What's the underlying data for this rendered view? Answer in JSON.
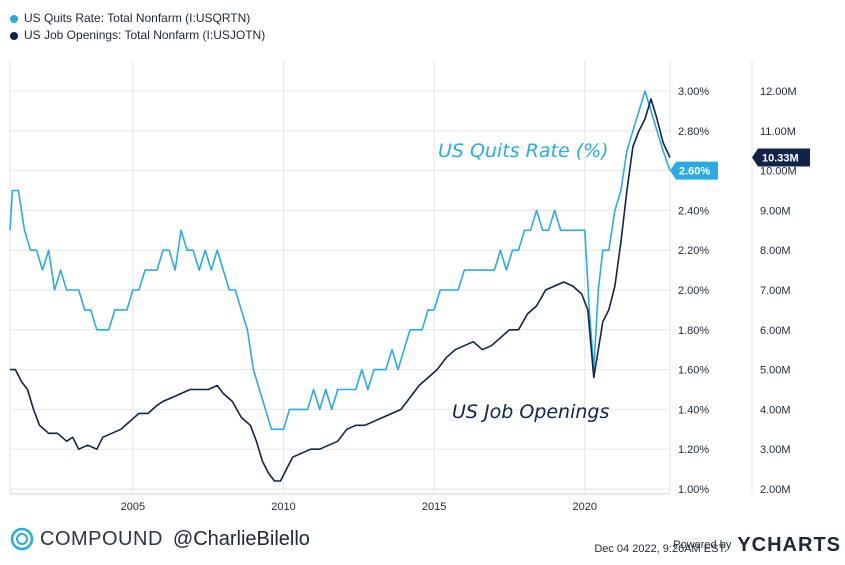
{
  "legend": {
    "quits_label": "US Quits Rate: Total Nonfarm (I:USQRTN)",
    "openings_label": "US Job Openings: Total Nonfarm (I:USJOTN)"
  },
  "annotations": {
    "quits": "US Quits Rate (%)",
    "openings": "US Job Openings"
  },
  "badges": {
    "quits_last": "2.60%",
    "openings_last": "10.33M"
  },
  "footer": {
    "brand": "COMPOUND",
    "handle": "@CharlieBilello",
    "timestamp": "Dec 04 2022, 9:26AM EST.",
    "powered_by": "Powered by",
    "ycharts": "YCHARTS"
  },
  "colors": {
    "quits": "#29abe2",
    "openings": "#0f2446",
    "grid": "#e6e6e6",
    "badge_quits_bg": "#29abe2",
    "badge_openings_bg": "#0f2446"
  },
  "chart_data": {
    "type": "line",
    "x_ticks": [
      "2005",
      "2010",
      "2015",
      "2020"
    ],
    "left_axis": {
      "ticks": [
        "1.00%",
        "1.20%",
        "1.40%",
        "1.60%",
        "1.80%",
        "2.00%",
        "2.20%",
        "2.40%",
        "2.60%",
        "2.80%",
        "3.00%"
      ],
      "range": [
        1.0,
        3.0
      ]
    },
    "right_axis": {
      "ticks": [
        "2.00M",
        "3.00M",
        "4.00M",
        "5.00M",
        "6.00M",
        "7.00M",
        "8.00M",
        "9.00M",
        "10.00M",
        "11.00M",
        "12.00M"
      ],
      "range": [
        2.0,
        12.0
      ]
    },
    "x_range": [
      2000.92,
      2022.83
    ],
    "series": [
      {
        "name": "US Quits Rate: Total Nonfarm (I:USQRTN)",
        "axis": "left",
        "points": [
          [
            2000.92,
            2.3
          ],
          [
            2001.0,
            2.5
          ],
          [
            2001.2,
            2.5
          ],
          [
            2001.4,
            2.3
          ],
          [
            2001.6,
            2.2
          ],
          [
            2001.8,
            2.2
          ],
          [
            2002.0,
            2.1
          ],
          [
            2002.2,
            2.2
          ],
          [
            2002.4,
            2.0
          ],
          [
            2002.6,
            2.1
          ],
          [
            2002.8,
            2.0
          ],
          [
            2003.0,
            2.0
          ],
          [
            2003.2,
            2.0
          ],
          [
            2003.4,
            1.9
          ],
          [
            2003.6,
            1.9
          ],
          [
            2003.8,
            1.8
          ],
          [
            2004.0,
            1.8
          ],
          [
            2004.2,
            1.8
          ],
          [
            2004.4,
            1.9
          ],
          [
            2004.6,
            1.9
          ],
          [
            2004.8,
            1.9
          ],
          [
            2005.0,
            2.0
          ],
          [
            2005.2,
            2.0
          ],
          [
            2005.4,
            2.1
          ],
          [
            2005.6,
            2.1
          ],
          [
            2005.8,
            2.1
          ],
          [
            2006.0,
            2.2
          ],
          [
            2006.2,
            2.2
          ],
          [
            2006.4,
            2.1
          ],
          [
            2006.6,
            2.3
          ],
          [
            2006.8,
            2.2
          ],
          [
            2007.0,
            2.2
          ],
          [
            2007.2,
            2.1
          ],
          [
            2007.4,
            2.2
          ],
          [
            2007.6,
            2.1
          ],
          [
            2007.8,
            2.2
          ],
          [
            2008.0,
            2.1
          ],
          [
            2008.2,
            2.0
          ],
          [
            2008.4,
            2.0
          ],
          [
            2008.6,
            1.9
          ],
          [
            2008.8,
            1.8
          ],
          [
            2009.0,
            1.6
          ],
          [
            2009.2,
            1.5
          ],
          [
            2009.4,
            1.4
          ],
          [
            2009.6,
            1.3
          ],
          [
            2009.8,
            1.3
          ],
          [
            2010.0,
            1.3
          ],
          [
            2010.2,
            1.4
          ],
          [
            2010.4,
            1.4
          ],
          [
            2010.6,
            1.4
          ],
          [
            2010.8,
            1.4
          ],
          [
            2011.0,
            1.5
          ],
          [
            2011.2,
            1.4
          ],
          [
            2011.4,
            1.5
          ],
          [
            2011.6,
            1.4
          ],
          [
            2011.8,
            1.5
          ],
          [
            2012.0,
            1.5
          ],
          [
            2012.2,
            1.5
          ],
          [
            2012.4,
            1.5
          ],
          [
            2012.6,
            1.6
          ],
          [
            2012.8,
            1.5
          ],
          [
            2013.0,
            1.6
          ],
          [
            2013.2,
            1.6
          ],
          [
            2013.4,
            1.6
          ],
          [
            2013.6,
            1.7
          ],
          [
            2013.8,
            1.6
          ],
          [
            2014.0,
            1.7
          ],
          [
            2014.2,
            1.8
          ],
          [
            2014.4,
            1.8
          ],
          [
            2014.6,
            1.8
          ],
          [
            2014.8,
            1.9
          ],
          [
            2015.0,
            1.9
          ],
          [
            2015.2,
            2.0
          ],
          [
            2015.4,
            2.0
          ],
          [
            2015.6,
            2.0
          ],
          [
            2015.8,
            2.0
          ],
          [
            2016.0,
            2.1
          ],
          [
            2016.2,
            2.1
          ],
          [
            2016.4,
            2.1
          ],
          [
            2016.6,
            2.1
          ],
          [
            2016.8,
            2.1
          ],
          [
            2017.0,
            2.1
          ],
          [
            2017.2,
            2.2
          ],
          [
            2017.4,
            2.1
          ],
          [
            2017.6,
            2.2
          ],
          [
            2017.8,
            2.2
          ],
          [
            2018.0,
            2.3
          ],
          [
            2018.2,
            2.3
          ],
          [
            2018.4,
            2.4
          ],
          [
            2018.6,
            2.3
          ],
          [
            2018.8,
            2.3
          ],
          [
            2019.0,
            2.4
          ],
          [
            2019.2,
            2.3
          ],
          [
            2019.4,
            2.3
          ],
          [
            2019.6,
            2.3
          ],
          [
            2019.8,
            2.3
          ],
          [
            2020.0,
            2.3
          ],
          [
            2020.15,
            1.9
          ],
          [
            2020.3,
            1.6
          ],
          [
            2020.45,
            2.0
          ],
          [
            2020.6,
            2.2
          ],
          [
            2020.8,
            2.2
          ],
          [
            2021.0,
            2.4
          ],
          [
            2021.2,
            2.5
          ],
          [
            2021.4,
            2.7
          ],
          [
            2021.6,
            2.8
          ],
          [
            2021.8,
            2.9
          ],
          [
            2022.0,
            3.0
          ],
          [
            2022.2,
            2.9
          ],
          [
            2022.4,
            2.8
          ],
          [
            2022.6,
            2.7
          ],
          [
            2022.83,
            2.6
          ]
        ]
      },
      {
        "name": "US Job Openings: Total Nonfarm (I:USJOTN)",
        "axis": "right",
        "points": [
          [
            2000.92,
            5.0
          ],
          [
            2001.1,
            5.0
          ],
          [
            2001.3,
            4.7
          ],
          [
            2001.5,
            4.5
          ],
          [
            2001.7,
            4.0
          ],
          [
            2001.9,
            3.6
          ],
          [
            2002.2,
            3.4
          ],
          [
            2002.5,
            3.4
          ],
          [
            2002.8,
            3.2
          ],
          [
            2003.0,
            3.3
          ],
          [
            2003.2,
            3.0
          ],
          [
            2003.5,
            3.1
          ],
          [
            2003.8,
            3.0
          ],
          [
            2004.0,
            3.3
          ],
          [
            2004.3,
            3.4
          ],
          [
            2004.6,
            3.5
          ],
          [
            2004.9,
            3.7
          ],
          [
            2005.2,
            3.9
          ],
          [
            2005.5,
            3.9
          ],
          [
            2005.8,
            4.1
          ],
          [
            2006.0,
            4.2
          ],
          [
            2006.3,
            4.3
          ],
          [
            2006.6,
            4.4
          ],
          [
            2006.9,
            4.5
          ],
          [
            2007.2,
            4.5
          ],
          [
            2007.5,
            4.5
          ],
          [
            2007.8,
            4.6
          ],
          [
            2008.0,
            4.4
          ],
          [
            2008.3,
            4.2
          ],
          [
            2008.6,
            3.8
          ],
          [
            2008.9,
            3.6
          ],
          [
            2009.1,
            3.2
          ],
          [
            2009.3,
            2.7
          ],
          [
            2009.5,
            2.4
          ],
          [
            2009.7,
            2.2
          ],
          [
            2009.9,
            2.2
          ],
          [
            2010.1,
            2.5
          ],
          [
            2010.3,
            2.8
          ],
          [
            2010.6,
            2.9
          ],
          [
            2010.9,
            3.0
          ],
          [
            2011.2,
            3.0
          ],
          [
            2011.5,
            3.1
          ],
          [
            2011.8,
            3.2
          ],
          [
            2012.1,
            3.5
          ],
          [
            2012.4,
            3.6
          ],
          [
            2012.7,
            3.6
          ],
          [
            2013.0,
            3.7
          ],
          [
            2013.3,
            3.8
          ],
          [
            2013.6,
            3.9
          ],
          [
            2013.9,
            4.0
          ],
          [
            2014.2,
            4.3
          ],
          [
            2014.5,
            4.6
          ],
          [
            2014.8,
            4.8
          ],
          [
            2015.1,
            5.0
          ],
          [
            2015.4,
            5.3
          ],
          [
            2015.7,
            5.5
          ],
          [
            2016.0,
            5.6
          ],
          [
            2016.3,
            5.7
          ],
          [
            2016.6,
            5.5
          ],
          [
            2016.9,
            5.6
          ],
          [
            2017.2,
            5.8
          ],
          [
            2017.5,
            6.0
          ],
          [
            2017.8,
            6.0
          ],
          [
            2018.1,
            6.4
          ],
          [
            2018.4,
            6.6
          ],
          [
            2018.7,
            7.0
          ],
          [
            2019.0,
            7.1
          ],
          [
            2019.3,
            7.2
          ],
          [
            2019.6,
            7.1
          ],
          [
            2019.9,
            6.9
          ],
          [
            2020.1,
            6.5
          ],
          [
            2020.3,
            4.8
          ],
          [
            2020.45,
            5.5
          ],
          [
            2020.6,
            6.2
          ],
          [
            2020.8,
            6.5
          ],
          [
            2021.0,
            7.1
          ],
          [
            2021.2,
            8.2
          ],
          [
            2021.4,
            9.5
          ],
          [
            2021.6,
            10.6
          ],
          [
            2021.8,
            11.0
          ],
          [
            2022.0,
            11.3
          ],
          [
            2022.2,
            11.8
          ],
          [
            2022.4,
            11.3
          ],
          [
            2022.6,
            10.7
          ],
          [
            2022.83,
            10.33
          ]
        ]
      }
    ]
  }
}
